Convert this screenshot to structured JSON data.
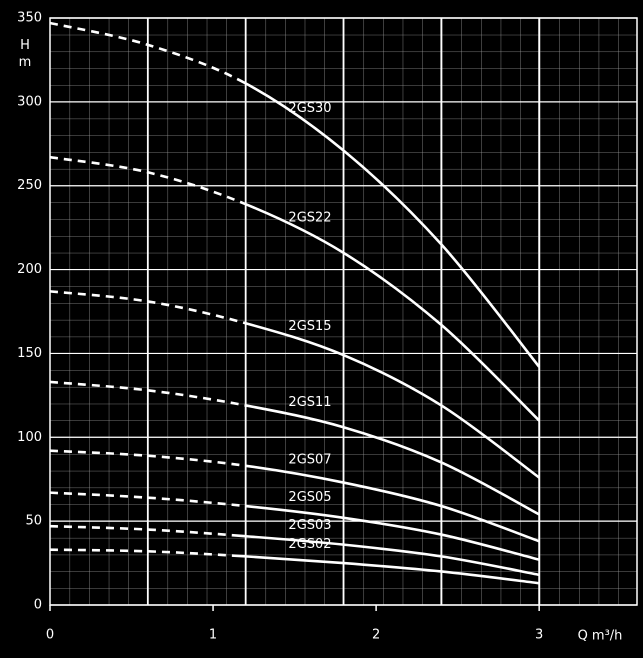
{
  "chart_data": {
    "type": "line",
    "y_label": "H\nm",
    "x_label": "Q m³/h",
    "xlim": [
      0,
      3.6
    ],
    "ylim": [
      0,
      350
    ],
    "xticks": [
      0,
      1,
      2,
      3
    ],
    "yticks": [
      0,
      50,
      100,
      150,
      200,
      250,
      300,
      350
    ],
    "x_major_grid": [
      0.6,
      1.2,
      1.8,
      2.4,
      3.0
    ],
    "grid": true,
    "dashed_below_x": 1.2,
    "x": [
      0,
      0.6,
      1.2,
      1.8,
      2.4,
      3.0
    ],
    "series": [
      {
        "name": "2GS30",
        "color": "#ffffff",
        "values": [
          347,
          334,
          311,
          271,
          215,
          142
        ]
      },
      {
        "name": "2GS22",
        "color": "#ffffff",
        "values": [
          267,
          258,
          239,
          210,
          167,
          110
        ]
      },
      {
        "name": "2GS15",
        "color": "#ffffff",
        "values": [
          187,
          181,
          168,
          149,
          119,
          76
        ]
      },
      {
        "name": "2GS11",
        "color": "#ffffff",
        "values": [
          133,
          128,
          119,
          106,
          85,
          54
        ]
      },
      {
        "name": "2GS07",
        "color": "#ffffff",
        "values": [
          92,
          89,
          83,
          73,
          59,
          38
        ]
      },
      {
        "name": "2GS05",
        "color": "#ffffff",
        "values": [
          67,
          64,
          59,
          52,
          42,
          27
        ]
      },
      {
        "name": "2GS03",
        "color": "#ffffff",
        "values": [
          47,
          45,
          41,
          36,
          29,
          18
        ]
      },
      {
        "name": "2GS02",
        "color": "#ffffff",
        "values": [
          33,
          32,
          29,
          25,
          20,
          13
        ]
      }
    ]
  }
}
